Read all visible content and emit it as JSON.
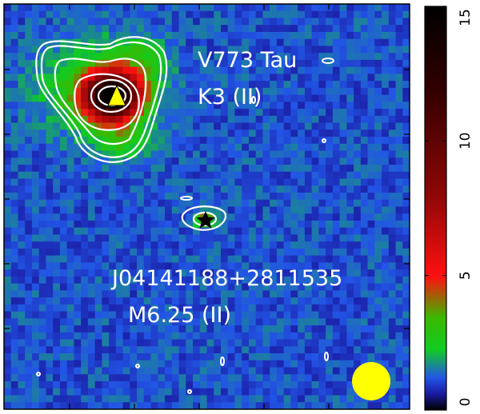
{
  "chart_data": {
    "type": "heatmap",
    "colorbar": {
      "ticks": [
        0,
        5,
        10,
        15
      ],
      "tick_labels": [
        "0",
        "5",
        "10",
        "15"
      ],
      "range": [
        0,
        15
      ],
      "colormap": [
        {
          "v": 0.0,
          "color": "#000000"
        },
        {
          "v": 0.6,
          "color": "#1a1aa0"
        },
        {
          "v": 1.2,
          "color": "#2255e6"
        },
        {
          "v": 2.3,
          "color": "#11cc22"
        },
        {
          "v": 3.5,
          "color": "#3cb800"
        },
        {
          "v": 5.0,
          "color": "#ff1010"
        },
        {
          "v": 8.0,
          "color": "#8f0707"
        },
        {
          "v": 12.0,
          "color": "#300000"
        },
        {
          "v": 15.0,
          "color": "#000000"
        }
      ]
    },
    "sources": [
      {
        "name": "V773 Tau",
        "spectral_type": "K3 (II)",
        "marker": "yellow-triangle",
        "peak": 14
      },
      {
        "name": "J04141188+2811535",
        "spectral_type": "M6.25 (II)",
        "marker": "black-star",
        "peak": 3.5
      }
    ],
    "contour_color": "#ffffff",
    "beam_color": "#ffff00",
    "background_color": "#2b55d6"
  }
}
